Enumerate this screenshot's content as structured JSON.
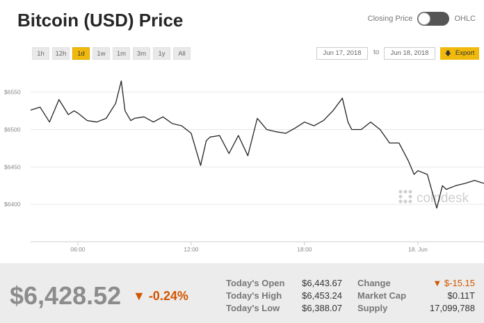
{
  "header": {
    "title": "Bitcoin (USD) Price",
    "toggle_left": "Closing Price",
    "toggle_right": "OHLC"
  },
  "ranges": [
    "1h",
    "12h",
    "1d",
    "1w",
    "1m",
    "3m",
    "1y",
    "All"
  ],
  "active_range": "1d",
  "dates": {
    "from": "Jun 17, 2018",
    "to_label": "to",
    "to": "Jun 18, 2018"
  },
  "export_label": "Export",
  "watermark": "coindesk",
  "colors": {
    "accent": "#f0b90b",
    "line": "#222222",
    "negative": "#d35400",
    "grid": "#e6e6e6"
  },
  "chart_data": {
    "type": "line",
    "title": "",
    "xlabel": "",
    "ylabel": "",
    "x_ticks": [
      "06:00",
      "12:00",
      "18:00",
      "18. Jun"
    ],
    "x_tick_hours": [
      6,
      12,
      18,
      24
    ],
    "y_ticks": [
      "$6400",
      "$6450",
      "$6500",
      "$6550"
    ],
    "y_tick_values": [
      6400,
      6450,
      6500,
      6550
    ],
    "xlim_hours": [
      3.5,
      27.5
    ],
    "ylim": [
      6350,
      6585
    ],
    "grid": true,
    "series": [
      {
        "x_hours": [
          3.5,
          4.0,
          4.5,
          5.0,
          5.5,
          5.8,
          6.0,
          6.5,
          7.0,
          7.5,
          8.0,
          8.3,
          8.5,
          8.8,
          9.0,
          9.5,
          10.0,
          10.5,
          11.0,
          11.5,
          12.0,
          12.5,
          12.8,
          13.0,
          13.5,
          14.0,
          14.5,
          15.0,
          15.5,
          15.8,
          16.0,
          16.5,
          17.0,
          17.5,
          18.0,
          18.5,
          19.0,
          19.5,
          20.0,
          20.3,
          20.5,
          21.0,
          21.5,
          22.0,
          22.5,
          23.0,
          23.5,
          23.8,
          24.0,
          24.5,
          25.0,
          25.3,
          25.5,
          26.0,
          26.5,
          27.0,
          27.5
        ],
        "values": [
          6526,
          6530,
          6510,
          6540,
          6520,
          6525,
          6522,
          6512,
          6510,
          6515,
          6535,
          6565,
          6525,
          6512,
          6515,
          6517,
          6510,
          6517,
          6508,
          6505,
          6495,
          6452,
          6485,
          6490,
          6492,
          6468,
          6492,
          6465,
          6515,
          6506,
          6500,
          6497,
          6495,
          6502,
          6510,
          6505,
          6512,
          6525,
          6542,
          6510,
          6500,
          6500,
          6510,
          6500,
          6482,
          6482,
          6458,
          6440,
          6445,
          6440,
          6395,
          6425,
          6420,
          6425,
          6428,
          6432,
          6428
        ]
      }
    ]
  },
  "footer": {
    "price": "$6,428.52",
    "change_pct": "▼ -0.24%",
    "stats": [
      {
        "label": "Today's Open",
        "value": "$6,443.67"
      },
      {
        "label": "Today's High",
        "value": "$6,453.24"
      },
      {
        "label": "Today's Low",
        "value": "$6,388.07"
      }
    ],
    "stats2": [
      {
        "label": "Change",
        "value": "▼ $-15.15"
      },
      {
        "label": "Market Cap",
        "value": "$0.11T"
      },
      {
        "label": "Supply",
        "value": "17,099,788"
      }
    ]
  }
}
